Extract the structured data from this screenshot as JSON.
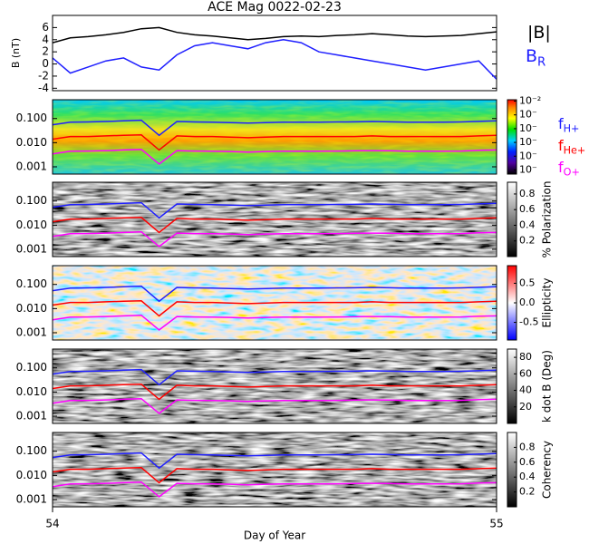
{
  "chart_data": [
    {
      "type": "line",
      "title": "ACE Mag 0022-02-23",
      "ylabel": "B (nT)",
      "x": [
        54,
        54.04,
        54.08,
        54.12,
        54.16,
        54.2,
        54.24,
        54.28,
        54.32,
        54.36,
        54.4,
        54.44,
        54.48,
        54.52,
        54.56,
        54.6,
        54.64,
        54.68,
        54.72,
        54.76,
        54.8,
        54.84,
        54.88,
        54.92,
        54.96,
        55
      ],
      "xlim": [
        54,
        55
      ],
      "ylim": [
        -4.4,
        8
      ],
      "yticks": [
        -4,
        -2,
        0,
        2,
        4,
        6
      ],
      "series": [
        {
          "name": "|B|",
          "color": "#000000",
          "values": [
            3.5,
            4.3,
            4.5,
            4.8,
            5.2,
            5.8,
            6.0,
            5.2,
            4.8,
            4.6,
            4.3,
            4.0,
            4.2,
            4.5,
            4.6,
            4.5,
            4.7,
            4.8,
            5.0,
            4.8,
            4.6,
            4.5,
            4.6,
            4.7,
            5.0,
            5.3
          ]
        },
        {
          "name": "B",
          "subscript": "R",
          "color": "#1f1fff",
          "values": [
            1.0,
            -1.5,
            -0.5,
            0.5,
            1.0,
            -0.5,
            -1.0,
            1.5,
            3.0,
            3.5,
            3.0,
            2.5,
            3.5,
            4.0,
            3.5,
            2.0,
            1.5,
            1.0,
            0.5,
            0.0,
            -0.5,
            -1.0,
            -0.5,
            0.0,
            0.5,
            -2.5
          ]
        }
      ]
    },
    {
      "type": "spectrogram",
      "colormap": "rainbow",
      "log_y": true,
      "ylim": [
        0.0005,
        0.6
      ],
      "yticks": [
        {
          "value": 0.1,
          "label": "0.100"
        },
        {
          "value": 0.01,
          "label": "0.010"
        },
        {
          "value": 0.001,
          "label": "0.001"
        }
      ],
      "clim": [
        -7.3,
        -1.9
      ],
      "cticks": [
        {
          "value": -2,
          "label": "10⁻²"
        },
        {
          "value": -3,
          "label": "10⁻"
        },
        {
          "value": -4,
          "label": "10⁻"
        },
        {
          "value": -5,
          "label": "10⁻"
        },
        {
          "value": -6,
          "label": "10⁻"
        },
        {
          "value": -7,
          "label": "10⁻"
        }
      ],
      "series": [
        {
          "name": "f",
          "subscript": "H+",
          "color": "#1f1fff",
          "values": [
            0.055,
            0.07,
            0.072,
            0.075,
            0.08,
            0.085,
            0.02,
            0.075,
            0.072,
            0.07,
            0.068,
            0.065,
            0.068,
            0.07,
            0.07,
            0.07,
            0.072,
            0.073,
            0.075,
            0.073,
            0.07,
            0.07,
            0.07,
            0.072,
            0.076,
            0.08
          ]
        },
        {
          "name": "f",
          "subscript": "He+",
          "color": "#ff0000",
          "values": [
            0.014,
            0.018,
            0.018,
            0.019,
            0.02,
            0.021,
            0.005,
            0.019,
            0.018,
            0.018,
            0.017,
            0.016,
            0.017,
            0.018,
            0.018,
            0.018,
            0.018,
            0.018,
            0.019,
            0.018,
            0.018,
            0.018,
            0.018,
            0.018,
            0.019,
            0.02
          ]
        },
        {
          "name": "f",
          "subscript": "O+",
          "color": "#ff00ff",
          "values": [
            0.0034,
            0.0044,
            0.0045,
            0.0047,
            0.005,
            0.0053,
            0.0013,
            0.0047,
            0.0045,
            0.0044,
            0.0043,
            0.0041,
            0.0043,
            0.0044,
            0.0044,
            0.0044,
            0.0045,
            0.0046,
            0.0047,
            0.0046,
            0.0044,
            0.0044,
            0.0044,
            0.0045,
            0.0048,
            0.005
          ]
        }
      ]
    },
    {
      "type": "spectrogram",
      "colormap": "gray",
      "log_y": true,
      "ylim": [
        0.0005,
        0.6
      ],
      "yticks": [
        {
          "value": 0.1,
          "label": "0.100"
        },
        {
          "value": 0.01,
          "label": "0.010"
        },
        {
          "value": 0.001,
          "label": "0.001"
        }
      ],
      "clim": [
        0,
        0.95
      ],
      "cticks": [
        0.2,
        0.4,
        0.6,
        0.8
      ],
      "colorbar_label": "% Polarization"
    },
    {
      "type": "spectrogram",
      "colormap": "bwr",
      "log_y": true,
      "ylim": [
        0.0005,
        0.6
      ],
      "yticks": [
        {
          "value": 0.1,
          "label": "0.100"
        },
        {
          "value": 0.01,
          "label": "0.010"
        },
        {
          "value": 0.001,
          "label": "0.001"
        }
      ],
      "clim": [
        -0.95,
        0.95
      ],
      "cticks": [
        -0.5,
        {
          "value": 0,
          "label": "0.0"
        },
        0.5
      ],
      "colorbar_label": "Ellipticity"
    },
    {
      "type": "spectrogram",
      "colormap": "gray",
      "log_y": true,
      "ylim": [
        0.0005,
        0.6
      ],
      "yticks": [
        {
          "value": 0.1,
          "label": "0.100"
        },
        {
          "value": 0.01,
          "label": "0.010"
        },
        {
          "value": 0.001,
          "label": "0.001"
        }
      ],
      "clim": [
        0,
        90
      ],
      "cticks": [
        20,
        40,
        60,
        80
      ],
      "colorbar_label": "k dot B (Deg)"
    },
    {
      "type": "spectrogram",
      "colormap": "gray",
      "log_y": true,
      "ylim": [
        0.0005,
        0.6
      ],
      "yticks": [
        {
          "value": 0.1,
          "label": "0.100"
        },
        {
          "value": 0.01,
          "label": "0.010"
        },
        {
          "value": 0.001,
          "label": "0.001"
        }
      ],
      "clim": [
        0,
        1
      ],
      "cticks": [
        0.2,
        0.4,
        0.6,
        0.8
      ],
      "colorbar_label": "Coherency",
      "xticks": [
        54,
        55
      ],
      "xlabel": "Day of Year"
    }
  ]
}
